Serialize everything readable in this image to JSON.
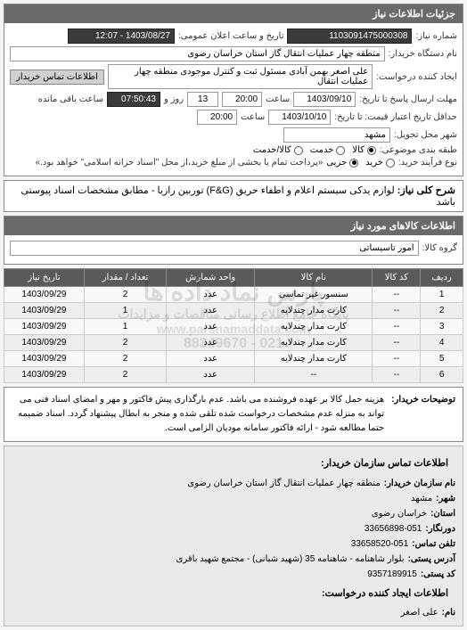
{
  "panel1_title": "جزئیات اطلاعات نیاز",
  "need_number_label": "شماره نیاز:",
  "need_number": "1103091475000308",
  "announce_label": "تاریخ و ساعت اعلان عمومی:",
  "announce_date": "1403/08/27 - 12:07",
  "buyer_org_label": "نام دستگاه خریدار:",
  "buyer_org": "منطقه چهار عملیات انتقال گاز   استان خراسان رضوی",
  "creator_label": "ایجاد کننده درخواست:",
  "creator": "علی اصغر بهمن آبادی مسئول ثبت و کنترل موجودی منطقه چهار عملیات انتقال",
  "contact_btn": "اطلاعات تماس خریدار",
  "deadline_label": "مهلت ارسال پاسخ تا تاریخ:",
  "deadline_date": "1403/09/10",
  "time_label": "ساعت",
  "deadline_time": "20:00",
  "days_remain": "13",
  "days_label": "روز و",
  "time_remain": "07:50:43",
  "remain_label": "ساعت باقی مانده",
  "validity_label": "حداقل تاریخ اعتبار قیمت: تا تاریخ:",
  "validity_date": "1403/10/10",
  "validity_time": "20:00",
  "delivery_city_label": "شهر محل تحویل:",
  "delivery_city": "مشهد",
  "group_type_label": "طبقه بندی موضوعی:",
  "group_opts": {
    "kala": "کالا",
    "khedmat": "خدمت",
    "both": "کالا/خدمت"
  },
  "process_label": "نوع فرآیند خرید:",
  "process_opts": {
    "kharid": "خرید",
    "joz": "جزیی"
  },
  "process_note": "«پرداخت تمام یا بخشی از مبلغ خرید،از محل \"اسناد خزانه اسلامی\" خواهد بود.»",
  "need_desc_label": "شرح کلی نیاز:",
  "need_desc": "لوازم یدکی سیستم اعلام و اطفاء حریق (F&G) توربین رازیا - مطابق مشخصات اسناد پیوستی باشد",
  "items_panel_title": "اطلاعات کالاهای مورد نیاز",
  "goods_group_label": "گروه کالا:",
  "goods_group": "امور تاسیساتی",
  "columns": [
    "ردیف",
    "کد کالا",
    "نام کالا",
    "واحد شمارش",
    "تعداد / مقدار",
    "تاریخ نیاز"
  ],
  "rows": [
    [
      "1",
      "--",
      "سنسور غیر تماسی",
      "عدد",
      "2",
      "1403/09/29"
    ],
    [
      "2",
      "--",
      "کارت مدار چندلایه",
      "عدد",
      "1",
      "1403/09/29"
    ],
    [
      "3",
      "--",
      "کارت مدار چندلایه",
      "عدد",
      "1",
      "1403/09/29"
    ],
    [
      "4",
      "--",
      "کارت مدار چندلایه",
      "عدد",
      "2",
      "1403/09/29"
    ],
    [
      "5",
      "--",
      "کارت مدار چندلایه",
      "عدد",
      "2",
      "1403/09/29"
    ],
    [
      "6",
      "--",
      "--",
      "عدد",
      "2",
      "1403/09/29"
    ]
  ],
  "watermark_lines": [
    "پارس نماد داده ها",
    "پایگاه جامع اطلاع رسانی مناقصات و مزایدات",
    "www.parsnamaddata.com",
    "021 - 88349670",
    "021 - 88349671"
  ],
  "buyer_note_label": "توضیحات خریدار:",
  "buyer_note": "هزینه حمل کالا بر عهده فروشنده می باشد. عدم بارگذاری پیش فاکتور و مهر و امضای اسناد فنی می تواند به منزله عدم مشخصات درخواست شده تلقی شده و منجر به ابطال پیشنهاد گردد. اسناد ضمیمه حتما مطالعه شود - ارائه فاکتور سامانه مودیان الزامی است.",
  "contact_title": "اطلاعات تماس سازمان خریدار:",
  "contacts": {
    "org_label": "نام سازمان خریدار:",
    "org": "منطقه چهار عملیات انتقال گاز استان خراسان رضوی",
    "city_label": "شهر:",
    "city": "مشهد",
    "province_label": "استان:",
    "province": "خراسان رضوی",
    "fax_label": "دورنگار:",
    "fax": "33656898-051",
    "phone_label": "تلفن تماس:",
    "phone": "33658520-051",
    "address_label": "آدرس پستی:",
    "address": "بلوار شاهنامه - شاهنامه 35 (شهید شبانی) - مجتمع شهید باقری",
    "postal_label": "کد پستی:",
    "postal": "9357189915",
    "requester_label": "اطلاعات ایجاد کننده درخواست:",
    "name_label": "نام:",
    "name": "علی اصغر"
  }
}
